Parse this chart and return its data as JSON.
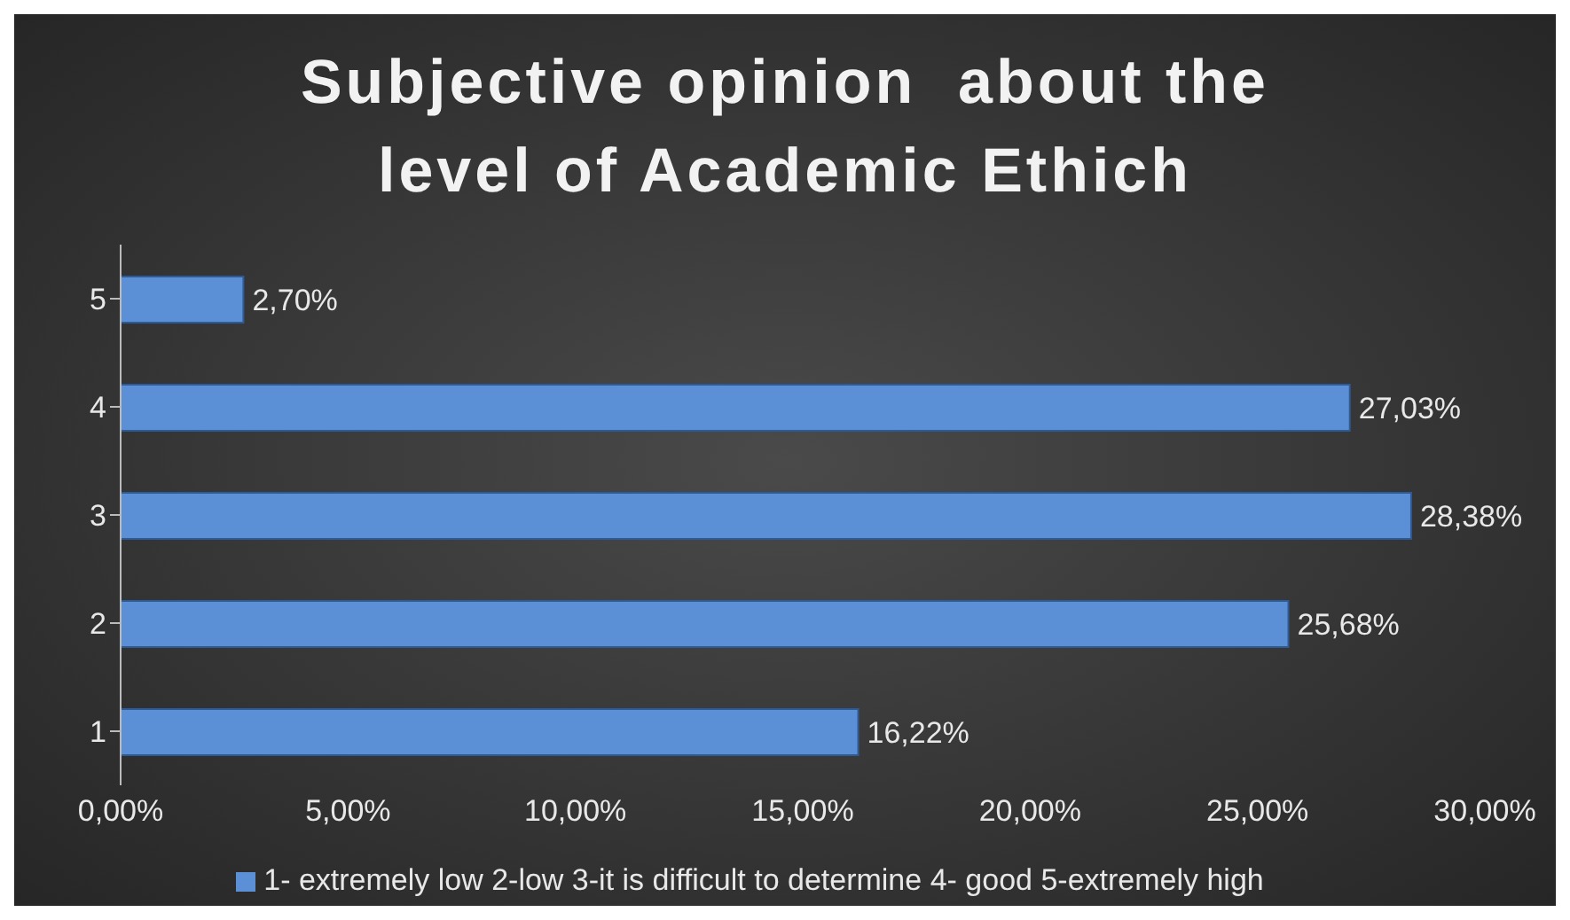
{
  "chart_data": {
    "type": "bar",
    "orientation": "horizontal",
    "title": "Subjective opinion  about the level of Academic Ethich",
    "categories": [
      "5",
      "4",
      "3",
      "2",
      "1"
    ],
    "series": [
      {
        "name": "1- extremely low 2-low  3-it is difficult to determine 4- good 5-extremely high",
        "color": "#5b8fd6",
        "values": [
          2.7,
          27.03,
          28.38,
          25.68,
          16.22
        ]
      }
    ],
    "value_labels": [
      "2,70%",
      "27,03%",
      "28,38%",
      "25,68%",
      "16,22%"
    ],
    "xlim": [
      0,
      30
    ],
    "xticks": [
      {
        "value": 0,
        "label": "0,00%"
      },
      {
        "value": 5,
        "label": "5,00%"
      },
      {
        "value": 10,
        "label": "10,00%"
      },
      {
        "value": 15,
        "label": "15,00%"
      },
      {
        "value": 20,
        "label": "20,00%"
      },
      {
        "value": 25,
        "label": "25,00%"
      },
      {
        "value": 30,
        "label": "30,00%"
      }
    ],
    "grid": false,
    "legend": "bottom"
  }
}
